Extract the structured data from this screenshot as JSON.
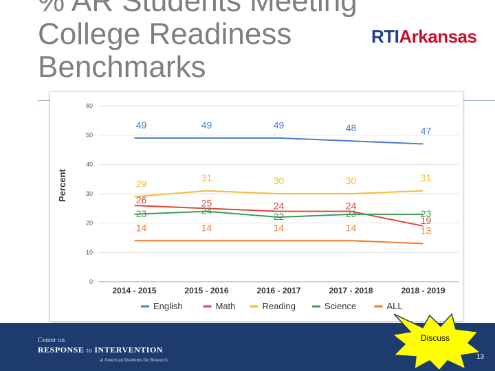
{
  "slide": {
    "title_lines": [
      "% AR Students Meeting",
      "College Readiness",
      "Benchmarks"
    ],
    "logo_rti": "RTI",
    "logo_state": "Arkansas",
    "discuss_label": "Discuss",
    "page_number": "13",
    "footer": {
      "line1": "Center on",
      "line2a": "RESPONSE",
      "line2b": "to",
      "line2c": "INTERVENTION",
      "line3": "at American Institutes for Research"
    }
  },
  "colors": {
    "English": "#4a7bd0",
    "Math": "#d9493b",
    "Reading": "#f2be35",
    "Science": "#3c9a57",
    "ALL": "#f07b2d"
  },
  "chart_data": {
    "type": "line",
    "title": "",
    "xlabel": "",
    "ylabel": "Percent",
    "ylim": [
      0,
      60
    ],
    "yticks": [
      0,
      10,
      20,
      30,
      40,
      50,
      60
    ],
    "categories": [
      "2014 - 2015",
      "2015 - 2016",
      "2016 - 2017",
      "2017 - 2018",
      "2018 - 2019"
    ],
    "series": [
      {
        "name": "English",
        "values": [
          49,
          49,
          49,
          48,
          47
        ]
      },
      {
        "name": "Math",
        "values": [
          26,
          25,
          24,
          24,
          19
        ]
      },
      {
        "name": "Reading",
        "values": [
          29,
          31,
          30,
          30,
          31
        ]
      },
      {
        "name": "Science",
        "values": [
          23,
          24,
          22,
          23,
          23
        ]
      },
      {
        "name": "ALL",
        "values": [
          14,
          14,
          14,
          14,
          13
        ]
      }
    ],
    "legend": [
      "English",
      "Math",
      "Reading",
      "Science",
      "ALL"
    ],
    "legend_position": "bottom"
  }
}
